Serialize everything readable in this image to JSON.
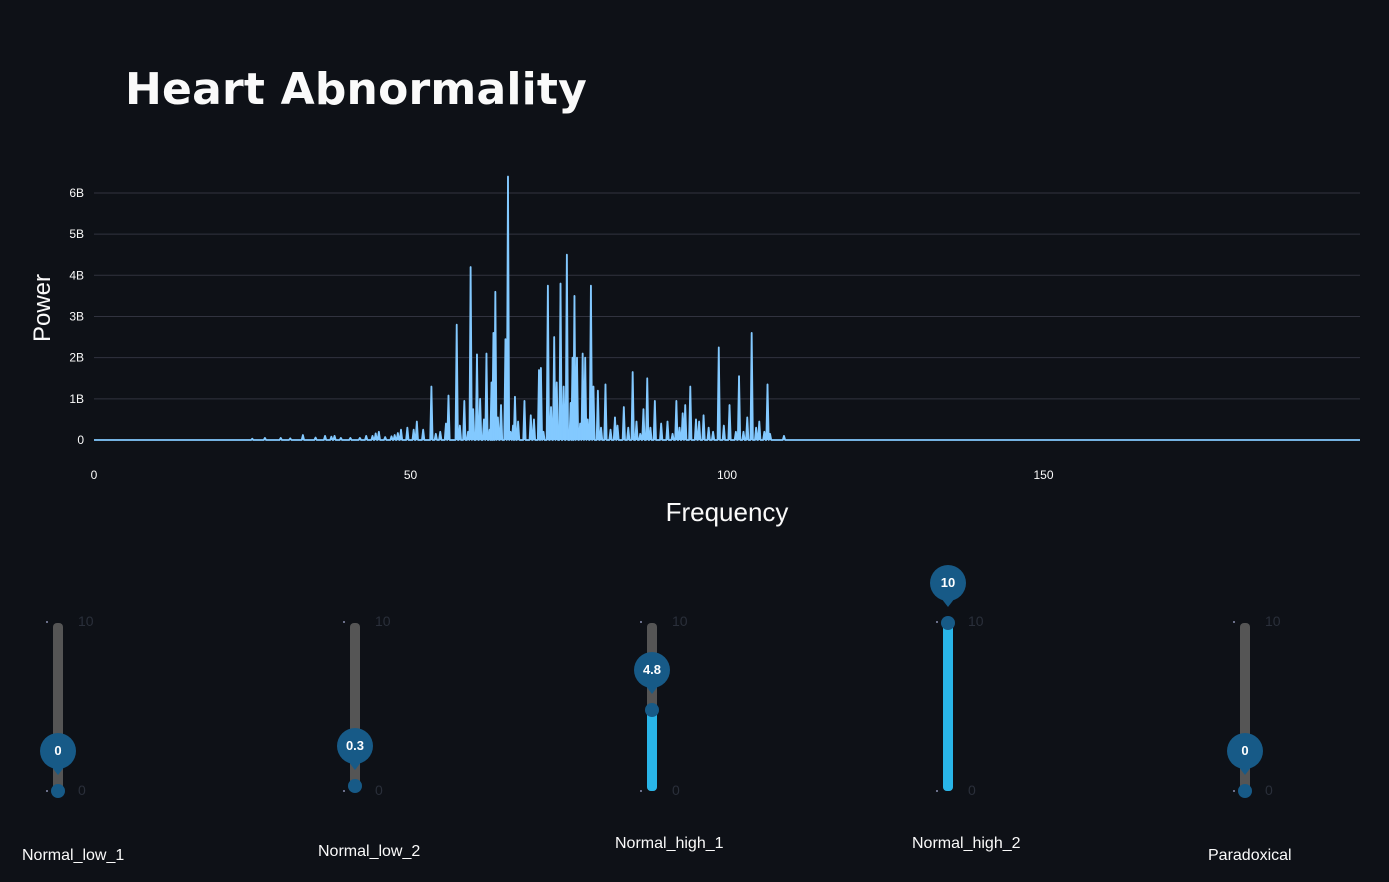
{
  "title": "Heart Abnormality",
  "colors": {
    "background": "#0e1117",
    "line": "#83c9ff",
    "grid": "#31333f",
    "slider_fill": "#29b5e8",
    "slider_track": "#555555",
    "slider_handle": "#175a87"
  },
  "chart_data": {
    "type": "line",
    "xlabel": "Frequency",
    "ylabel": "Power",
    "xlim": [
      0,
      200
    ],
    "ylim": [
      0,
      6.8
    ],
    "x_ticks": [
      {
        "value": 0,
        "label": "0"
      },
      {
        "value": 50,
        "label": "50"
      },
      {
        "value": 100,
        "label": "100"
      },
      {
        "value": 150,
        "label": "150"
      }
    ],
    "y_ticks": [
      {
        "value": 0,
        "label": "0"
      },
      {
        "value": 1,
        "label": "1B"
      },
      {
        "value": 2,
        "label": "2B"
      },
      {
        "value": 3,
        "label": "3B"
      },
      {
        "value": 4,
        "label": "4B"
      },
      {
        "value": 5,
        "label": "5B"
      },
      {
        "value": 6,
        "label": "6B"
      }
    ],
    "y_unit": "billions",
    "grid": true,
    "series": [
      {
        "name": "Power",
        "peaks": [
          [
            25,
            0.03
          ],
          [
            27,
            0.05
          ],
          [
            29.5,
            0.05
          ],
          [
            31,
            0.04
          ],
          [
            33,
            0.12
          ],
          [
            35,
            0.06
          ],
          [
            36.5,
            0.1
          ],
          [
            37.5,
            0.08
          ],
          [
            38,
            0.1
          ],
          [
            39,
            0.05
          ],
          [
            40.5,
            0.05
          ],
          [
            42,
            0.05
          ],
          [
            43,
            0.1
          ],
          [
            44,
            0.1
          ],
          [
            44.5,
            0.16
          ],
          [
            45,
            0.2
          ],
          [
            46,
            0.07
          ],
          [
            47,
            0.09
          ],
          [
            47.5,
            0.12
          ],
          [
            48,
            0.17
          ],
          [
            48.5,
            0.25
          ],
          [
            49.5,
            0.3
          ],
          [
            50.5,
            0.25
          ],
          [
            51,
            0.45
          ],
          [
            52,
            0.25
          ],
          [
            53.3,
            1.3
          ],
          [
            54,
            0.15
          ],
          [
            54.7,
            0.2
          ],
          [
            55.6,
            0.4
          ],
          [
            56,
            1.08
          ],
          [
            57.3,
            2.8
          ],
          [
            57.8,
            0.35
          ],
          [
            58.5,
            0.95
          ],
          [
            59.1,
            0.2
          ],
          [
            59.5,
            4.2
          ],
          [
            59.9,
            0.75
          ],
          [
            60.5,
            2.08
          ],
          [
            61,
            1.0
          ],
          [
            61.6,
            0.5
          ],
          [
            62,
            2.1
          ],
          [
            62.5,
            0.25
          ],
          [
            62.8,
            1.4
          ],
          [
            63.1,
            2.6
          ],
          [
            63.4,
            3.6
          ],
          [
            63.8,
            0.55
          ],
          [
            64.3,
            0.85
          ],
          [
            65,
            2.45
          ],
          [
            65.4,
            6.4
          ],
          [
            65.8,
            0.2
          ],
          [
            66.2,
            0.35
          ],
          [
            66.5,
            1.05
          ],
          [
            67,
            0.45
          ],
          [
            68,
            0.95
          ],
          [
            69,
            0.6
          ],
          [
            69.5,
            0.5
          ],
          [
            70.3,
            1.7
          ],
          [
            70.6,
            1.75
          ],
          [
            71,
            0.2
          ],
          [
            71.7,
            3.75
          ],
          [
            72.2,
            0.8
          ],
          [
            72.7,
            2.5
          ],
          [
            73.1,
            1.4
          ],
          [
            73.7,
            3.8
          ],
          [
            74.2,
            1.3
          ],
          [
            74.7,
            4.5
          ],
          [
            75.3,
            0.9
          ],
          [
            75.6,
            2.0
          ],
          [
            75.9,
            3.5
          ],
          [
            76.3,
            2.0
          ],
          [
            76.8,
            0.4
          ],
          [
            77.2,
            2.1
          ],
          [
            77.6,
            2.0
          ],
          [
            78,
            0.5
          ],
          [
            78.5,
            3.75
          ],
          [
            78.9,
            1.3
          ],
          [
            79.6,
            1.2
          ],
          [
            80.1,
            0.3
          ],
          [
            80.8,
            1.35
          ],
          [
            81.6,
            0.25
          ],
          [
            82.3,
            0.55
          ],
          [
            82.7,
            0.35
          ],
          [
            83.7,
            0.8
          ],
          [
            84.4,
            0.3
          ],
          [
            85.1,
            1.65
          ],
          [
            85.7,
            0.45
          ],
          [
            86.3,
            0.15
          ],
          [
            86.8,
            0.75
          ],
          [
            87.4,
            1.5
          ],
          [
            87.9,
            0.3
          ],
          [
            88.6,
            0.95
          ],
          [
            89.6,
            0.4
          ],
          [
            90.6,
            0.45
          ],
          [
            91.4,
            0.15
          ],
          [
            92,
            0.95
          ],
          [
            92.5,
            0.3
          ],
          [
            93,
            0.65
          ],
          [
            93.4,
            0.85
          ],
          [
            94.2,
            1.3
          ],
          [
            95.1,
            0.5
          ],
          [
            95.6,
            0.45
          ],
          [
            96.3,
            0.6
          ],
          [
            97.1,
            0.3
          ],
          [
            97.8,
            0.2
          ],
          [
            98.7,
            2.25
          ],
          [
            99.5,
            0.35
          ],
          [
            100.4,
            0.85
          ],
          [
            101.4,
            0.2
          ],
          [
            101.9,
            1.55
          ],
          [
            102.6,
            0.2
          ],
          [
            103.2,
            0.55
          ],
          [
            103.9,
            2.6
          ],
          [
            104.6,
            0.3
          ],
          [
            105.1,
            0.45
          ],
          [
            105.9,
            0.2
          ],
          [
            106.4,
            1.35
          ],
          [
            106.8,
            0.15
          ],
          [
            109,
            0.1
          ]
        ]
      }
    ]
  },
  "sliders": [
    {
      "label": "Normal_low_1",
      "value": 0,
      "value_text": "0",
      "min": 0,
      "max": 10,
      "min_label": "0",
      "max_label": "10"
    },
    {
      "label": "Normal_low_2",
      "value": 0.3,
      "value_text": "0.3",
      "min": 0,
      "max": 10,
      "min_label": "0",
      "max_label": "10"
    },
    {
      "label": "Normal_high_1",
      "value": 4.8,
      "value_text": "4.8",
      "min": 0,
      "max": 10,
      "min_label": "0",
      "max_label": "10"
    },
    {
      "label": "Normal_high_2",
      "value": 10,
      "value_text": "10",
      "min": 0,
      "max": 10,
      "min_label": "0",
      "max_label": "10"
    },
    {
      "label": "Paradoxical",
      "value": 0,
      "value_text": "0",
      "min": 0,
      "max": 10,
      "min_label": "0",
      "max_label": "10"
    }
  ]
}
